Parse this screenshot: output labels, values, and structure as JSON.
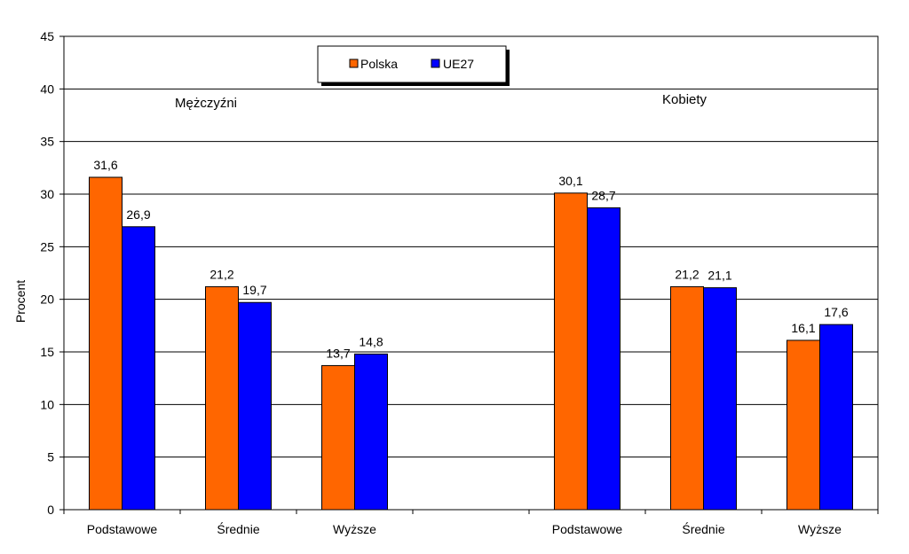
{
  "chart_data": {
    "type": "bar",
    "title": "",
    "xlabel": "",
    "ylabel": "Procent",
    "ylim": [
      0,
      45
    ],
    "yticks": [
      0,
      5,
      10,
      15,
      20,
      25,
      30,
      35,
      40,
      45
    ],
    "grid": true,
    "legend_position": "top-center",
    "categories": [
      "Podstawowe",
      "Średnie",
      "Wyższe",
      "",
      "Podstawowe",
      "Średnie",
      "Wyższe"
    ],
    "series": [
      {
        "name": "Polska",
        "color": "#ff6600",
        "values": [
          31.6,
          21.2,
          13.7,
          null,
          30.1,
          21.2,
          16.1
        ]
      },
      {
        "name": "UE27",
        "color": "#0000ff",
        "values": [
          26.9,
          19.7,
          14.8,
          null,
          28.7,
          21.1,
          17.6
        ]
      }
    ],
    "data_labels": {
      "Polska": [
        "31,6",
        "21,2",
        "13,7",
        "",
        "30,1",
        "21,2",
        "16,1"
      ],
      "UE27": [
        "26,9",
        "19,7",
        "14,8",
        "",
        "28,7",
        "21,1",
        "17,6"
      ]
    },
    "annotations": [
      {
        "text": "Mężczyźni",
        "group": "left"
      },
      {
        "text": "Kobiety",
        "group": "right"
      }
    ]
  }
}
